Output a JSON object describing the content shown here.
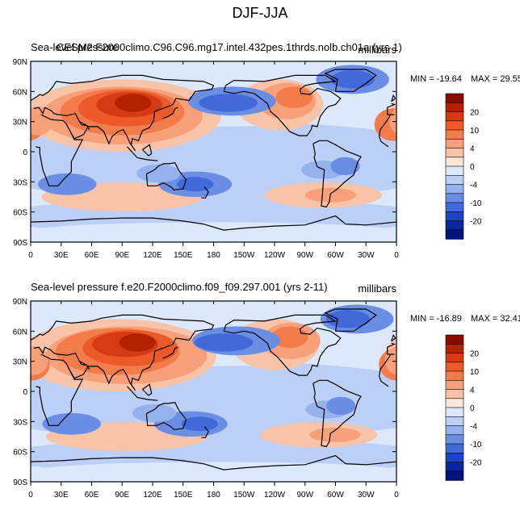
{
  "figure_title": "DJF-JJA",
  "chart_data": [
    {
      "type": "heatmap",
      "variable": "Sea-level pressure",
      "case": "CESM2.F2000climo.C96.C96.mg17.intel.432pes.1thrds.nolb.ch01a (yrs 1)",
      "units": "millibars",
      "min": -19.64,
      "max": 29.55,
      "min_label": "MIN = -19.64",
      "max_label": "MAX =  29.55",
      "x_ticks": [
        "0",
        "30E",
        "60E",
        "90E",
        "120E",
        "150E",
        "180",
        "150W",
        "120W",
        "90W",
        "60W",
        "30W",
        "0"
      ],
      "y_ticks": [
        "90N",
        "60N",
        "30N",
        "0",
        "30S",
        "60S",
        "90S"
      ],
      "colorbar_ticks": [
        "20",
        "10",
        "4",
        "0",
        "-4",
        "-10",
        "-20"
      ]
    },
    {
      "type": "heatmap",
      "variable": "Sea-level pressure",
      "case": "f.e20.F2000climo.f09_f09.297.001 (yrs 2-11)",
      "units": "millibars",
      "min": -16.89,
      "max": 32.41,
      "min_label": "MIN = -16.89",
      "max_label": "MAX =  32.41",
      "x_ticks": [
        "0",
        "30E",
        "60E",
        "90E",
        "120E",
        "150E",
        "180",
        "150W",
        "120W",
        "90W",
        "60W",
        "30W",
        "0"
      ],
      "y_ticks": [
        "90N",
        "60N",
        "30N",
        "0",
        "30S",
        "60S",
        "90S"
      ],
      "colorbar_ticks": [
        "20",
        "10",
        "4",
        "0",
        "-4",
        "-10",
        "-20"
      ]
    }
  ],
  "colors": {
    "levels": [
      "#8b0a00",
      "#b32200",
      "#d63a14",
      "#ec5a2a",
      "#f47b4a",
      "#f8a07a",
      "#f9c3a8",
      "#fbe6da",
      "#dce8fb",
      "#bccff6",
      "#95b2ee",
      "#6a8ee4",
      "#4169d8",
      "#1c43c4",
      "#0a25a0",
      "#00147a"
    ],
    "coast": "#000000"
  }
}
